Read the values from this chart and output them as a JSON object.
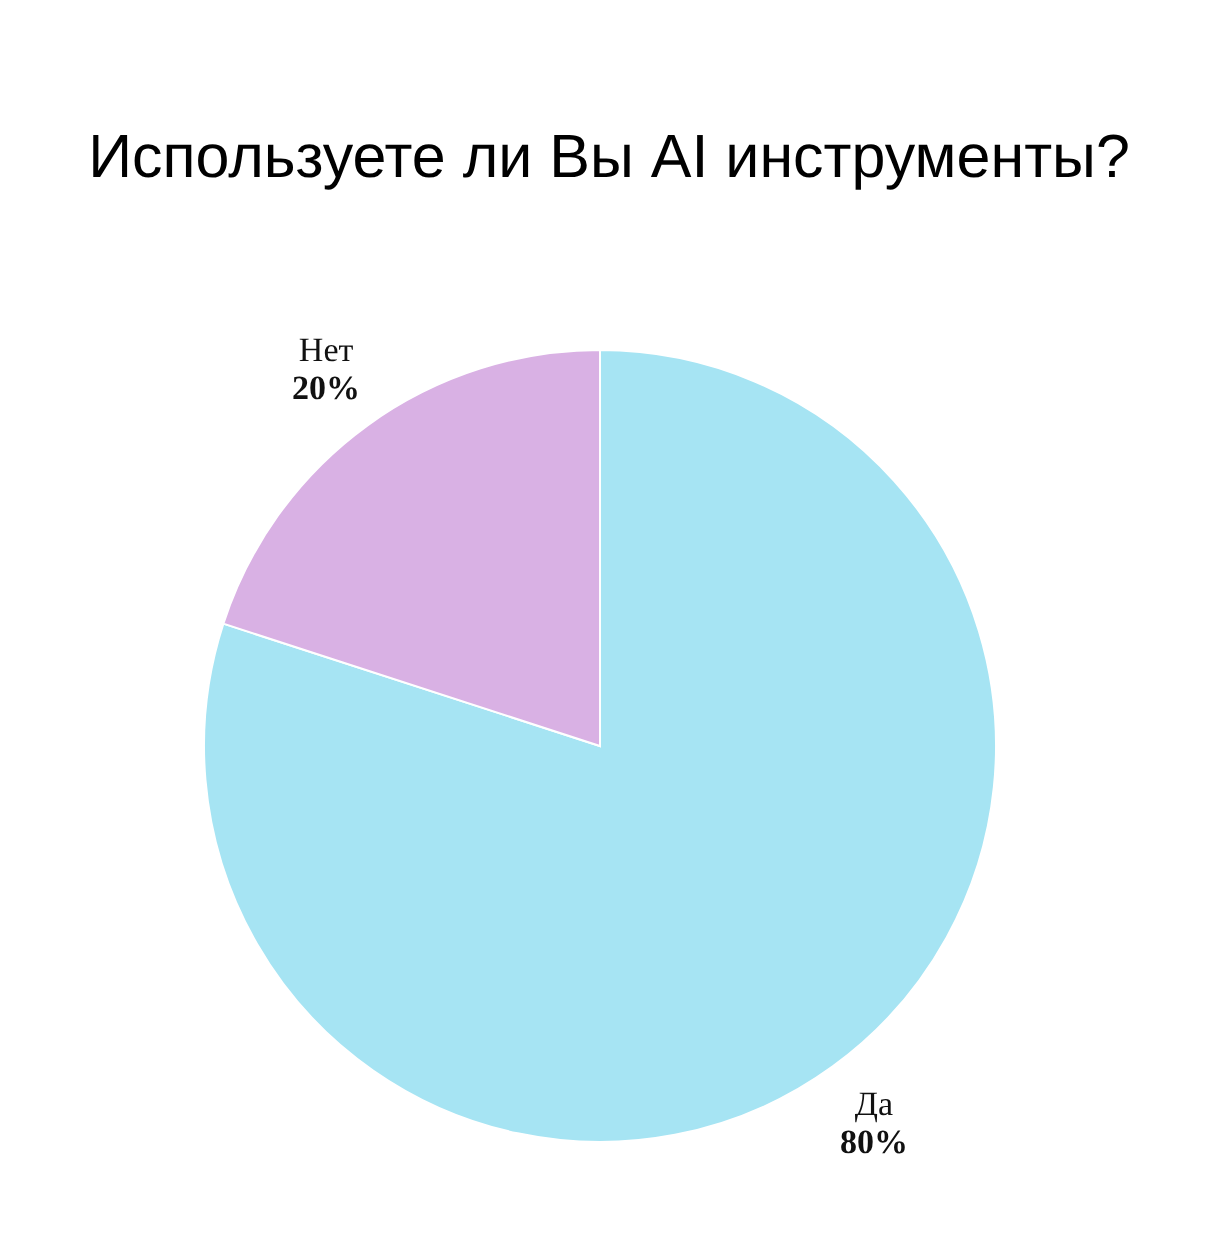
{
  "chart_data": {
    "type": "pie",
    "title": "Используете ли Вы AI инструменты?",
    "categories": [
      "Да",
      "Нет"
    ],
    "values": [
      80,
      20
    ],
    "colors": [
      "#a6e4f3",
      "#d9b1e4"
    ],
    "value_labels": [
      "80%",
      "20%"
    ]
  }
}
